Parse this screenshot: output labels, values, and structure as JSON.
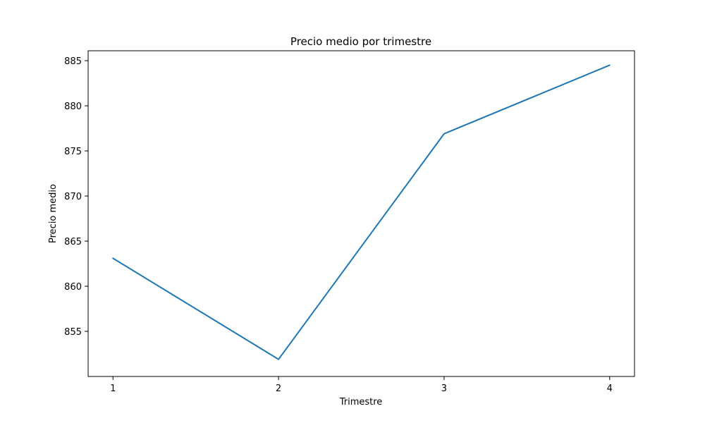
{
  "chart_data": {
    "type": "line",
    "title": "Precio medio por trimestre",
    "xlabel": "Trimestre",
    "ylabel": "Precio medio",
    "x": [
      1,
      2,
      3,
      4
    ],
    "x_tick_labels": [
      "1",
      "2",
      "3",
      "4"
    ],
    "y_ticks": [
      855,
      860,
      865,
      870,
      875,
      880,
      885
    ],
    "y_tick_labels": [
      "855",
      "860",
      "865",
      "870",
      "875",
      "880",
      "885"
    ],
    "xlim": [
      0.85,
      4.15
    ],
    "ylim": [
      850.0,
      886.1
    ],
    "series": [
      {
        "values": [
          863.1,
          851.9,
          876.9,
          884.5
        ],
        "color": "#1f77b4"
      }
    ],
    "grid": false,
    "legend": "none"
  }
}
